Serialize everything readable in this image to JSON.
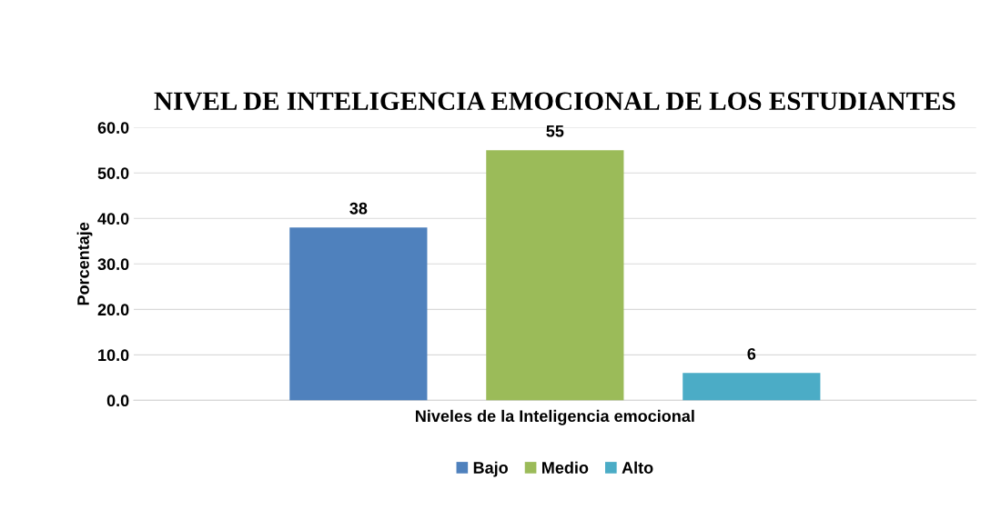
{
  "chart_data": {
    "type": "bar",
    "title": "NIVEL DE INTELIGENCIA EMOCIONAL DE LOS ESTUDIANTES",
    "xlabel": "Niveles de la Inteligencia emocional",
    "ylabel": "Porcentaje",
    "categories": [
      null
    ],
    "series": [
      {
        "name": "Bajo",
        "color": "#4f81bd",
        "values": [
          38
        ],
        "value_labels": [
          "38"
        ]
      },
      {
        "name": "Medio",
        "color": "#9bbb59",
        "values": [
          55
        ],
        "value_labels": [
          "55"
        ]
      },
      {
        "name": "Alto",
        "color": "#4bacc6",
        "values": [
          6
        ],
        "value_labels": [
          "6"
        ]
      }
    ],
    "ylim": [
      0,
      60
    ],
    "yticks": [
      {
        "value": 0,
        "label": "0.0"
      },
      {
        "value": 10,
        "label": "10.0"
      },
      {
        "value": 20,
        "label": "20.0"
      },
      {
        "value": 30,
        "label": "30.0"
      },
      {
        "value": 40,
        "label": "40.0"
      },
      {
        "value": 50,
        "label": "50.0"
      },
      {
        "value": 60,
        "label": "60.0"
      }
    ],
    "grid": "y",
    "legend": "bottom"
  }
}
